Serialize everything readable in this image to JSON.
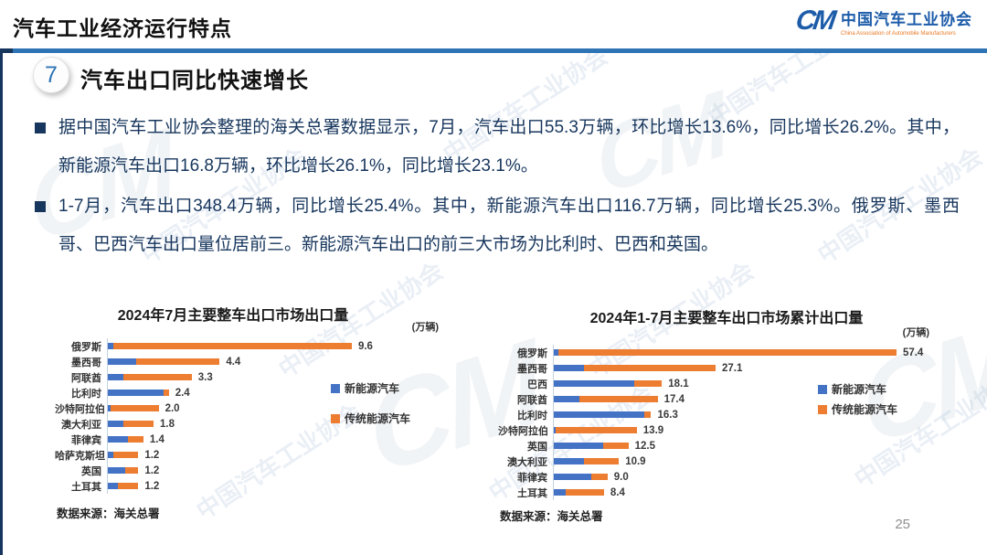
{
  "header": {
    "title": "汽车工业经济运行特点",
    "logo": {
      "mark": "CM",
      "org_cn": "中国汽车工业协会",
      "org_en": "China Association of Automobile Manufacturers"
    }
  },
  "slide": {
    "section_number": "7",
    "section_title": "汽车出口同比快速增长",
    "bullets": [
      "据中国汽车工业协会整理的海关总署数据显示，7月，汽车出口55.3万辆，环比增长13.6%，同比增长26.2%。其中，新能源汽车出口16.8万辆，环比增长26.1%，同比增长23.1%。",
      "1-7月，汽车出口348.4万辆，同比增长25.4%。其中，新能源汽车出口116.7万辆，同比增长25.3%。俄罗斯、墨西哥、巴西汽车出口量位居前三。新能源汽车出口的前三大市场为比利时、巴西和英国。"
    ],
    "page_number": "25"
  },
  "watermark": {
    "text": "中国汽车工业协会",
    "mark": "CM"
  },
  "colors": {
    "nev_blue": "#4472C4",
    "trad_orange": "#ED7D31",
    "accent_bar_blue": "#2E74B5",
    "navy": "#17365D",
    "logo_blue": "#1D5CA9",
    "logo_orange": "#E87722"
  },
  "chart_data": [
    {
      "type": "bar",
      "orientation": "horizontal",
      "stacked": true,
      "title": "2024年7月主要整车出口市场出口量",
      "unit": "(万辆)",
      "categories": [
        "俄罗斯",
        "墨西哥",
        "阿联酋",
        "比利时",
        "沙特阿拉伯",
        "澳大利亚",
        "菲律宾",
        "哈萨克斯坦",
        "英国",
        "土耳其"
      ],
      "totals": [
        9.6,
        4.4,
        3.3,
        2.4,
        2.0,
        1.8,
        1.4,
        1.2,
        1.2,
        1.2
      ],
      "series": [
        {
          "name": "新能源汽车",
          "color": "#4472C4",
          "values": [
            0.2,
            1.1,
            0.6,
            2.2,
            0.1,
            0.6,
            0.8,
            0.2,
            0.7,
            0.4
          ]
        },
        {
          "name": "传统能源汽车",
          "color": "#ED7D31",
          "values": [
            9.4,
            3.3,
            2.7,
            0.2,
            1.9,
            1.2,
            0.6,
            1.0,
            0.5,
            0.8
          ]
        }
      ],
      "xlim": [
        0,
        10.5
      ],
      "grid": false,
      "legend_position": "right",
      "source": "数据来源：海关总署"
    },
    {
      "type": "bar",
      "orientation": "horizontal",
      "stacked": true,
      "title": "2024年1-7月主要整车出口市场累计出口量",
      "unit": "(万辆)",
      "categories": [
        "俄罗斯",
        "墨西哥",
        "巴西",
        "阿联酋",
        "比利时",
        "沙特阿拉伯",
        "英国",
        "澳大利亚",
        "菲律宾",
        "土耳其"
      ],
      "totals": [
        57.4,
        27.1,
        18.1,
        17.4,
        16.3,
        13.9,
        12.5,
        10.9,
        9.0,
        8.4
      ],
      "series": [
        {
          "name": "新能源汽车",
          "color": "#4472C4",
          "values": [
            0.7,
            5.0,
            13.4,
            4.3,
            15.2,
            0.3,
            8.2,
            5.0,
            6.3,
            2.0
          ]
        },
        {
          "name": "传统能源汽车",
          "color": "#ED7D31",
          "values": [
            56.7,
            22.1,
            4.7,
            13.1,
            1.1,
            13.6,
            4.3,
            5.9,
            2.7,
            6.4
          ]
        }
      ],
      "xlim": [
        0,
        62
      ],
      "grid": false,
      "legend_position": "right",
      "source": "数据来源：海关总署"
    }
  ]
}
